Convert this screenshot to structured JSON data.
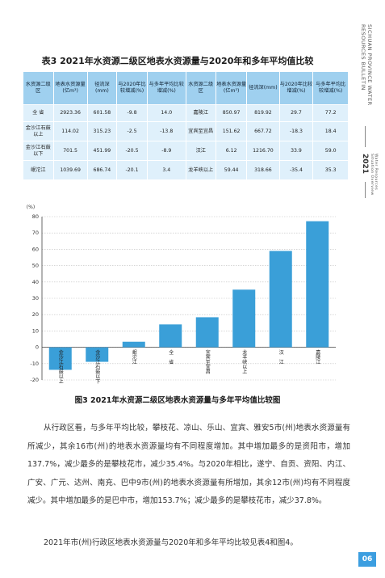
{
  "side": {
    "title_en_line1": "SICHUAN PROVINCE WATER",
    "title_en_line2": "RESOURCES BULLETIN",
    "year": "2021",
    "subtitle_line1": "Water Resources",
    "subtitle_line2": "Situation Overview"
  },
  "table": {
    "title": "表3 2021年水资源二级区地表水资源量与2020年和多年平均值比较",
    "headers": [
      "水资源二级区",
      "地表水资源量(亿m³)",
      "径流深(mm)",
      "与2020年比较增减(%)",
      "与多年平均比较增减(%)",
      "水资源二级区",
      "地表水资源量(亿m³)",
      "径流深(mm)",
      "与2020年比较增减(%)",
      "与多年平均比较增减(%)"
    ],
    "rows": [
      [
        "全 省",
        "2923.36",
        "601.58",
        "-9.8",
        "14.0",
        "嘉陵江",
        "850.97",
        "819.92",
        "29.7",
        "77.2"
      ],
      [
        "金沙江石鼓以上",
        "114.02",
        "315.23",
        "-2.5",
        "-13.8",
        "宜宾至宜昌",
        "151.62",
        "667.72",
        "-18.3",
        "18.4"
      ],
      [
        "金沙江石鼓以下",
        "701.5",
        "451.99",
        "-20.5",
        "-8.9",
        "汉江",
        "6.12",
        "1216.70",
        "33.9",
        "59.0"
      ],
      [
        "岷沱江",
        "1039.69",
        "686.74",
        "-20.1",
        "3.4",
        "龙羊峡以上",
        "59.44",
        "318.66",
        "-35.4",
        "35.3"
      ]
    ]
  },
  "chart_data": {
    "type": "bar",
    "ylabel": "(%)",
    "ylim": [
      -20,
      80
    ],
    "yticks": [
      -20,
      -10,
      0,
      10,
      20,
      30,
      40,
      50,
      60,
      70,
      80
    ],
    "categories": [
      "金沙江石鼓以上",
      "金沙江石鼓以下",
      "岷沱江",
      "全省",
      "宜宾至宜昌",
      "龙羊峡以上",
      "汉江",
      "嘉陵江"
    ],
    "tick_labels": [
      "金沙江石鼓以上",
      "金沙江石鼓以下",
      "岷沱江",
      "全　省",
      "宜宾至宜昌",
      "龙羊峡以上",
      "汉　江",
      "嘉陵江"
    ],
    "values": [
      -13.8,
      -8.9,
      3.4,
      14.0,
      18.4,
      35.3,
      59.0,
      77.2
    ],
    "bar_color": "#3a9fd8",
    "grid": true,
    "caption": "图3 2021年水资源二级区地表水资源量与多年平均值比较图"
  },
  "text": {
    "para1": "从行政区看，与多年平均比较，攀枝花、凉山、乐山、宜宾、雅安5市(州)地表水资源量有所减少，其余16市(州)的地表水资源量均有不同程度增加。其中增加最多的是资阳市，增加137.7%，减少最多的是攀枝花市，减少35.4%。与2020年相比，遂宁、自贡、资阳、内江、广安、广元、达州、南充、巴中9市(州)的地表水资源量有所增加，其余12市(州)均有不同程度减少。其中增加最多的是巴中市，增加153.7%；减少最多的是攀枝花市，减少37.8%。",
    "para2": "2021年市(州)行政区地表水资源量与2020年和多年平均比较见表4和图4。"
  },
  "page_number": "06"
}
